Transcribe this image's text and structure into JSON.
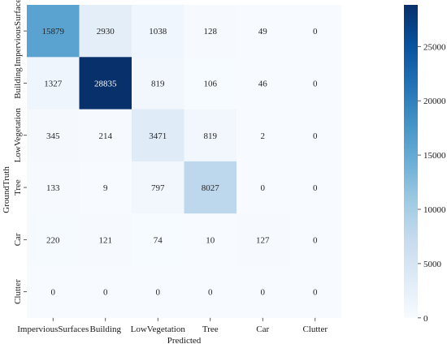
{
  "chart_data": {
    "type": "heatmap",
    "title": "",
    "xlabel": "Predicted",
    "ylabel": "GroundTruth",
    "x_categories": [
      "ImperviousSurfaces",
      "Building",
      "LowVegetation",
      "Tree",
      "Car",
      "Clutter"
    ],
    "y_categories": [
      "ImperviousSurfaces",
      "Building",
      "LowVegetation",
      "Tree",
      "Car",
      "Clutter"
    ],
    "values": [
      [
        15879,
        2930,
        1038,
        128,
        49,
        0
      ],
      [
        1327,
        28835,
        819,
        106,
        46,
        0
      ],
      [
        345,
        214,
        3471,
        819,
        2,
        0
      ],
      [
        133,
        9,
        797,
        8027,
        0,
        0
      ],
      [
        220,
        121,
        74,
        10,
        127,
        0
      ],
      [
        0,
        0,
        0,
        0,
        0,
        0
      ]
    ],
    "colorbar": {
      "min": 0,
      "max": 28835,
      "ticks": [
        0,
        5000,
        10000,
        15000,
        20000,
        25000
      ],
      "colormap": "Blues"
    }
  }
}
